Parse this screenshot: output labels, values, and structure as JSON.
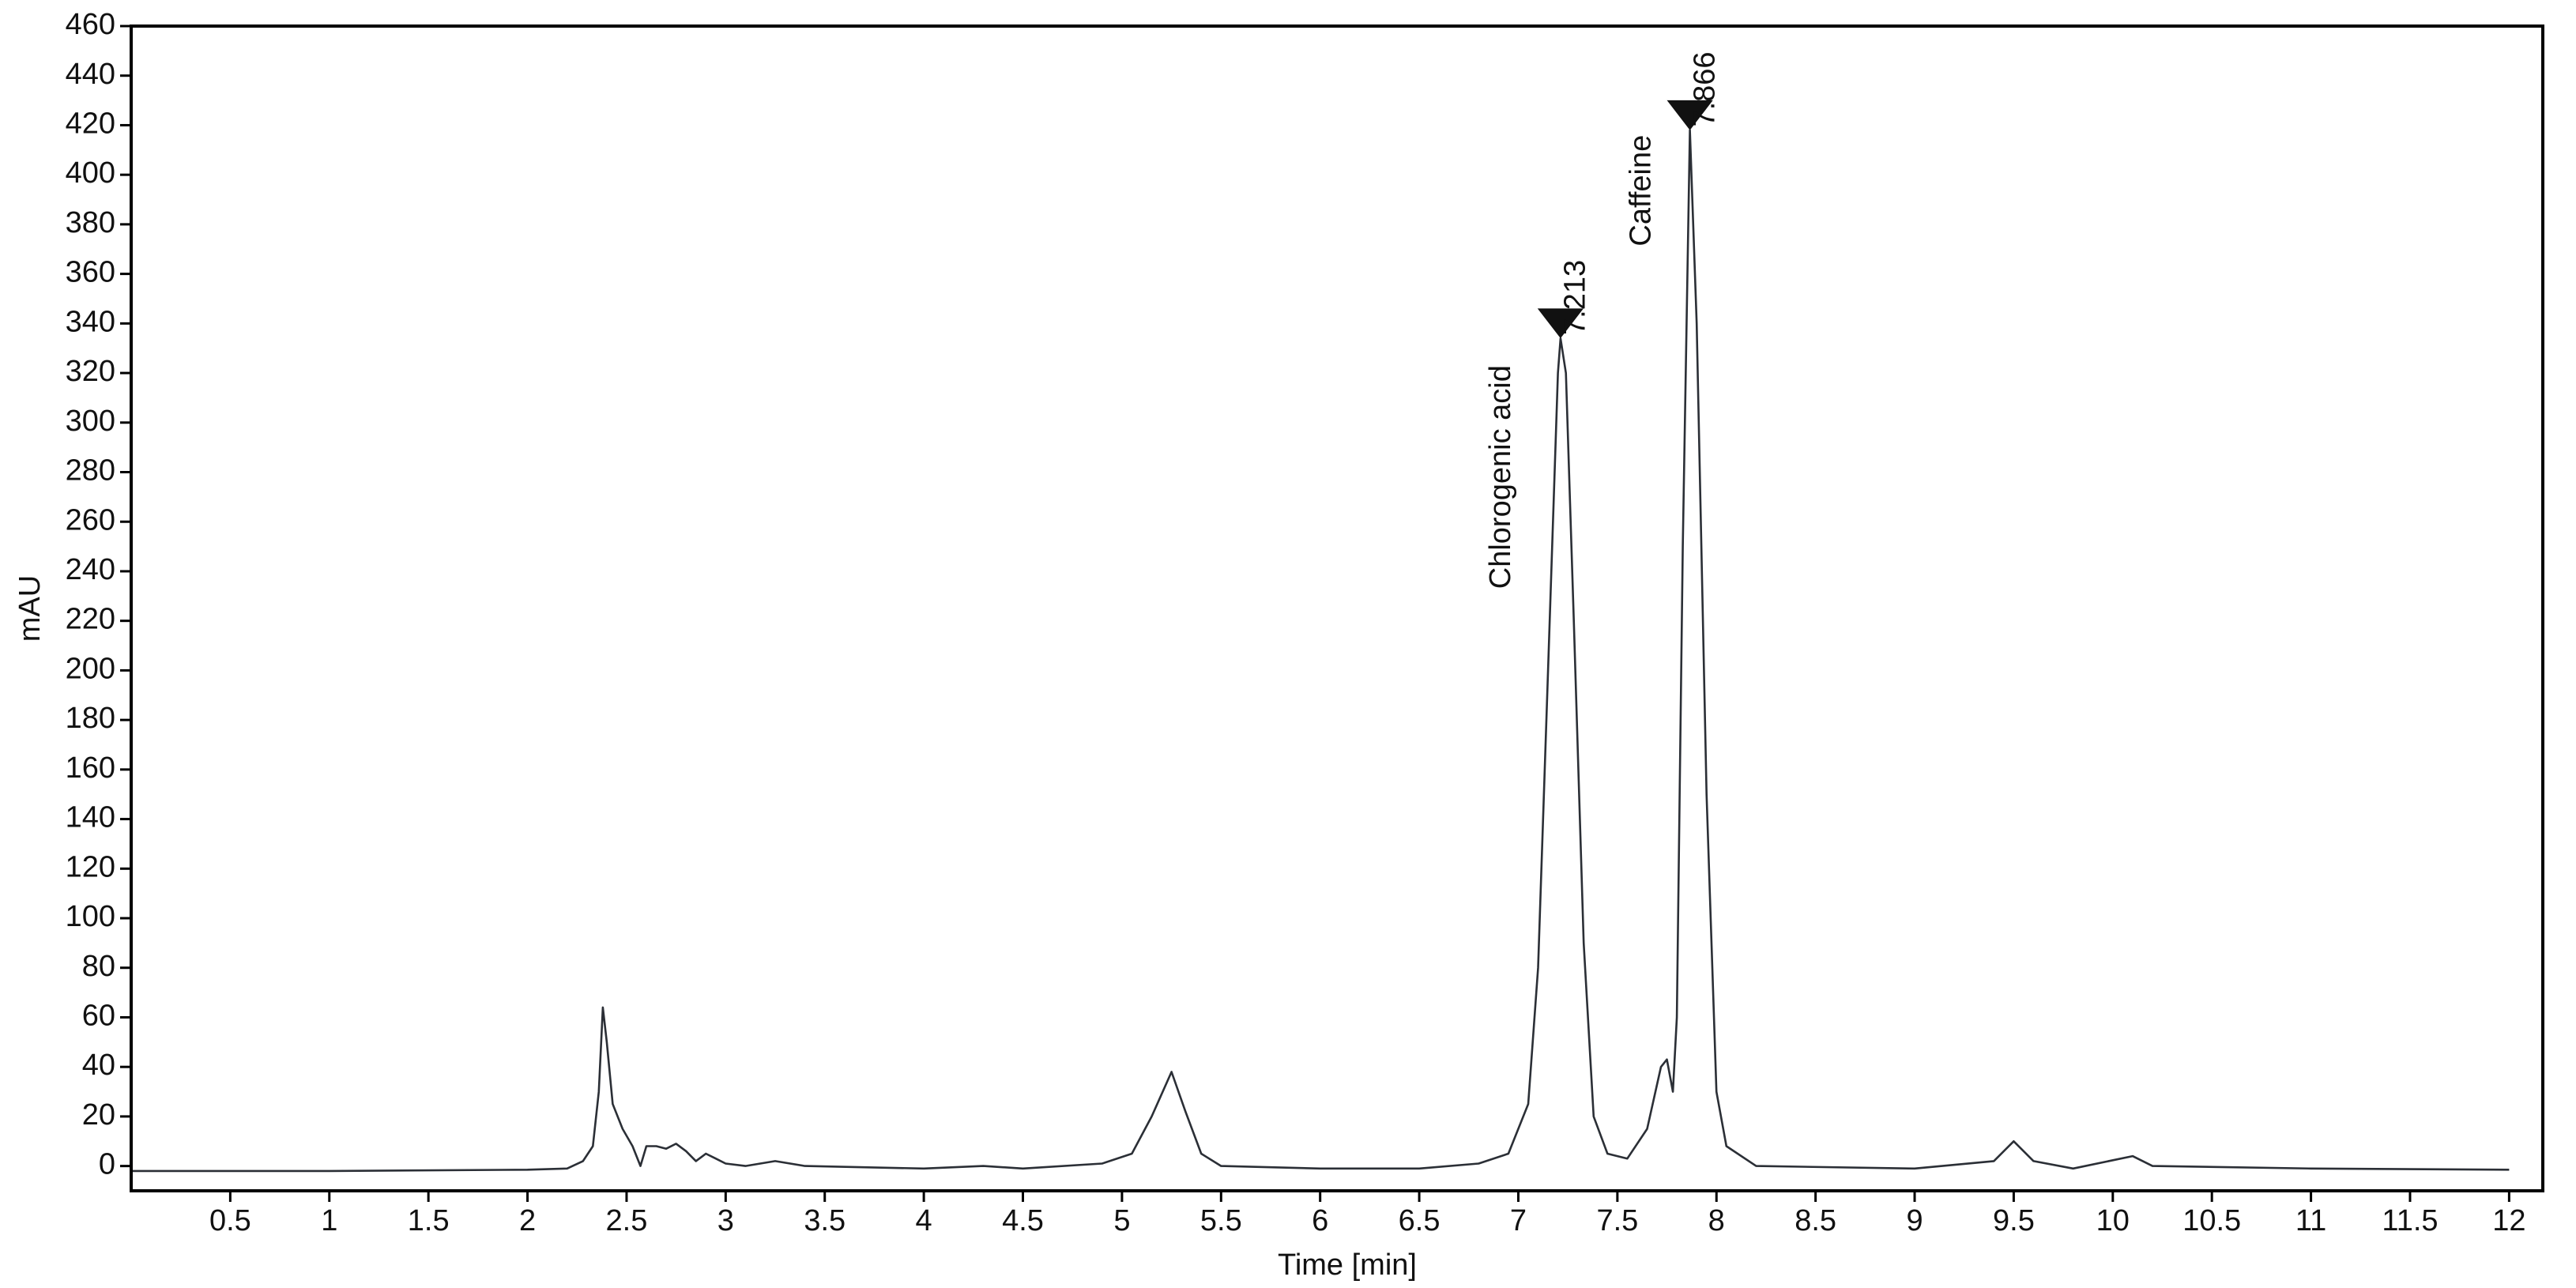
{
  "chart_data": {
    "type": "line",
    "x_label": "Time [min]",
    "y_label": "mAU",
    "xlim": [
      0,
      12.17
    ],
    "ylim": [
      -10,
      460
    ],
    "xticks": [
      0.5,
      1,
      1.5,
      2,
      2.5,
      3,
      3.5,
      4,
      4.5,
      5,
      5.5,
      6,
      6.5,
      7,
      7.5,
      8,
      8.5,
      9,
      9.5,
      10,
      10.5,
      11,
      11.5,
      12
    ],
    "yticks": [
      0,
      20,
      40,
      60,
      80,
      100,
      120,
      140,
      160,
      180,
      200,
      220,
      240,
      260,
      280,
      300,
      320,
      340,
      360,
      380,
      400,
      420,
      440,
      460
    ],
    "series": [
      {
        "color": "#2b2f36",
        "x": [
          0,
          1,
          2,
          2.2,
          2.28,
          2.33,
          2.36,
          2.38,
          2.4,
          2.43,
          2.48,
          2.53,
          2.57,
          2.6,
          2.65,
          2.7,
          2.75,
          2.8,
          2.85,
          2.9,
          2.95,
          3.0,
          3.1,
          3.25,
          3.4,
          4,
          4.3,
          4.5,
          4.9,
          5.05,
          5.15,
          5.25,
          5.32,
          5.4,
          5.5,
          6,
          6.5,
          6.8,
          6.95,
          7.05,
          7.1,
          7.15,
          7.2,
          7.213,
          7.24,
          7.28,
          7.33,
          7.38,
          7.45,
          7.55,
          7.65,
          7.72,
          7.75,
          7.78,
          7.8,
          7.83,
          7.866,
          7.9,
          7.95,
          8.0,
          8.05,
          8.2,
          9,
          9.4,
          9.5,
          9.6,
          9.8,
          10.1,
          10.2,
          11,
          12
        ],
        "values": [
          -2,
          -2,
          -1.5,
          -1,
          2,
          8,
          30,
          64,
          50,
          25,
          15,
          8,
          0,
          8,
          8,
          7,
          9,
          6,
          2,
          5,
          3,
          1,
          0,
          2,
          0,
          -1,
          0,
          -1,
          1,
          5,
          20,
          38,
          22,
          5,
          0,
          -1,
          -1,
          1,
          5,
          25,
          80,
          200,
          320,
          334,
          320,
          220,
          90,
          20,
          5,
          3,
          15,
          40,
          43,
          30,
          60,
          250,
          418,
          340,
          150,
          30,
          8,
          0,
          -1,
          2,
          10,
          2,
          -1,
          4,
          0,
          -1,
          -1.5
        ]
      }
    ],
    "peaks": [
      {
        "name": "Chlorogenic acid",
        "x": 7.213,
        "y": 334,
        "color": "#2f6f8f"
      },
      {
        "name": "Caffeine",
        "x": 7.866,
        "y": 418,
        "color": "#2f6f8f"
      }
    ]
  }
}
